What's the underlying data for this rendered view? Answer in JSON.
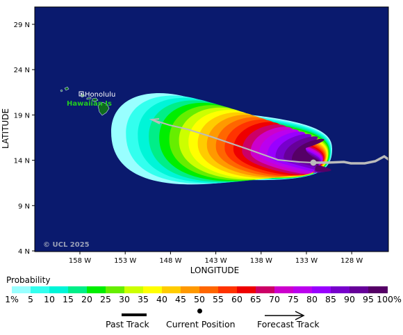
{
  "map": {
    "background_color": "#0a1a6e",
    "land_color": "#0e6b1e",
    "latitude_ticks": [
      "29 N",
      "24 N",
      "19 N",
      "14 N",
      "9 N",
      "4 N"
    ],
    "longitude_ticks": [
      "158 W",
      "153 W",
      "148 W",
      "143 W",
      "138 W",
      "133 W",
      "128 W"
    ],
    "xlabel": "LONGITUDE",
    "ylabel": "LATITUDE",
    "city_label": "Honolulu",
    "island_label": "Hawaiian Is",
    "copyright": "© UCL 2025"
  },
  "legend": {
    "title": "Probability",
    "labels": [
      "1%",
      "5",
      "10",
      "15",
      "20",
      "25",
      "30",
      "35",
      "40",
      "45",
      "50",
      "55",
      "60",
      "65",
      "70",
      "75",
      "80",
      "85",
      "90",
      "95",
      "100%"
    ],
    "colors": [
      "#99ffff",
      "#33ffee",
      "#00f5d8",
      "#00ee88",
      "#00ee00",
      "#66ee00",
      "#ccff00",
      "#ffff00",
      "#ffcc00",
      "#ff9900",
      "#ff6600",
      "#ff3300",
      "#ee0000",
      "#cc0066",
      "#cc00cc",
      "#bb00ee",
      "#9900ff",
      "#7700cc",
      "#660099",
      "#550066"
    ]
  },
  "track_key": {
    "past": "Past Track",
    "current": "Current Position",
    "forecast": "Forecast Track"
  }
}
